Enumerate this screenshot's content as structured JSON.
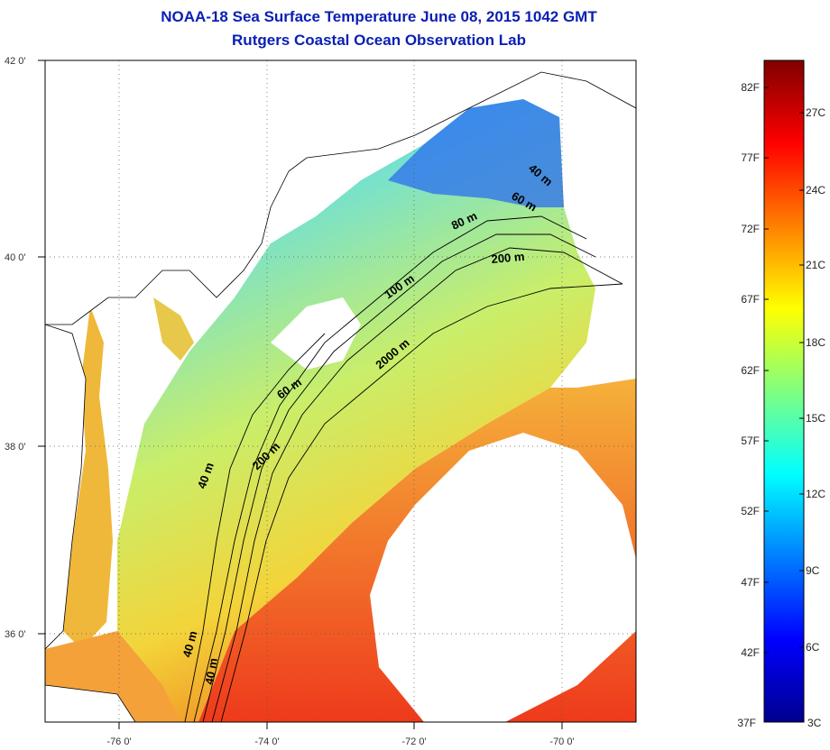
{
  "title": {
    "line1": "NOAA-18 Sea Surface Temperature June 08, 2015 1042 GMT",
    "line2": "Rutgers Coastal Ocean Observation Lab"
  },
  "map": {
    "lat_labels": [
      "42 0'",
      "40 0'",
      "38 0'",
      "36 0'"
    ],
    "lon_labels": [
      "-76 0'",
      "-74 0'",
      "-72 0'",
      "-70 0'"
    ],
    "isobath_labels": [
      "40 m",
      "60 m",
      "80 m",
      "200 m",
      "100 m",
      "60 m",
      "2000 m",
      "40 m",
      "200 m",
      "40 m",
      "40 m"
    ]
  },
  "colorbar": {
    "fahrenheit": [
      "82F",
      "77F",
      "72F",
      "67F",
      "62F",
      "57F",
      "52F",
      "47F",
      "42F",
      "37F"
    ],
    "celsius": [
      "27C",
      "24C",
      "21C",
      "18C",
      "15C",
      "12C",
      "9C",
      "6C",
      "3C"
    ],
    "colors": [
      "#00008f",
      "#0000ff",
      "#0080ff",
      "#00ffff",
      "#80ff80",
      "#ffff00",
      "#ff8000",
      "#ff0000",
      "#800000"
    ]
  }
}
